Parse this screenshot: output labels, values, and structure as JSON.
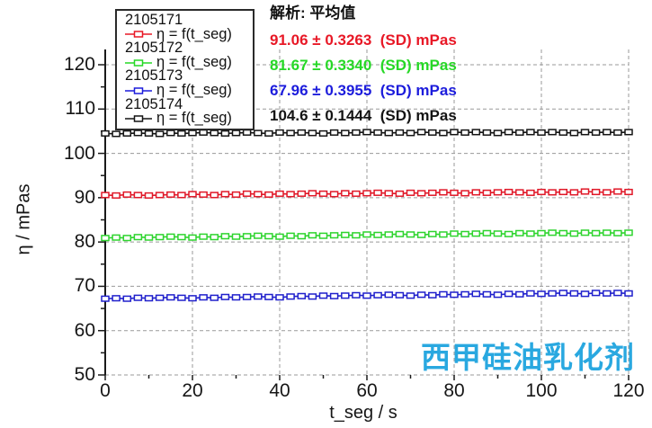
{
  "figure": {
    "watermark": "西甲硅油乳化剂",
    "watermark_color": "#29a8e0",
    "background": "#ffffff",
    "grid_color": "#9a9a9a",
    "axis_color": "#1a1a1a"
  },
  "analysis": {
    "title": "解析: 平均值",
    "results": [
      {
        "text": "91.06 ± 0.3263  (SD) mPas",
        "color": "#e81826"
      },
      {
        "text": "81.67 ± 0.3340  (SD) mPas",
        "color": "#26d826"
      },
      {
        "text": "67.96 ± 0.3955  (SD) mPas",
        "color": "#1c1cdc"
      },
      {
        "text": "104.6 ± 0.1444  (SD) mPas",
        "color": "#141414"
      }
    ]
  },
  "legend": {
    "items": [
      {
        "id": "2105171",
        "formula": "η = f(t_seg)",
        "color": "#e81826"
      },
      {
        "id": "2105172",
        "formula": "η = f(t_seg)",
        "color": "#26d826"
      },
      {
        "id": "2105173",
        "formula": "η = f(t_seg)",
        "color": "#1c1cdc"
      },
      {
        "id": "2105174",
        "formula": "η = f(t_seg)",
        "color": "#141414"
      }
    ]
  },
  "chart_data": {
    "type": "line",
    "title": "",
    "xlabel": "t_seg / s",
    "ylabel": "η / mPas",
    "xlim": [
      0,
      120
    ],
    "ylim": [
      50,
      120
    ],
    "x_ticks": [
      0,
      20,
      40,
      60,
      80,
      100,
      120
    ],
    "x_minor_ticks": [
      10,
      30,
      50,
      70,
      90,
      110
    ],
    "y_ticks": [
      50,
      60,
      70,
      80,
      90,
      100,
      110,
      120
    ],
    "y_minor_ticks": [
      55,
      65,
      75,
      85,
      95,
      105,
      115
    ],
    "grid": "dashed",
    "legend_position": "top-left",
    "marker": "open-square",
    "x": [
      0,
      2.5,
      5,
      7.5,
      10,
      12.5,
      15,
      17.5,
      20,
      22.5,
      25,
      27.5,
      30,
      32.5,
      35,
      37.5,
      40,
      42.5,
      45,
      47.5,
      50,
      52.5,
      55,
      57.5,
      60,
      62.5,
      65,
      67.5,
      70,
      72.5,
      75,
      77.5,
      80,
      82.5,
      85,
      87.5,
      90,
      92.5,
      95,
      97.5,
      100,
      102.5,
      105,
      107.5,
      110,
      112.5,
      115,
      117.5,
      120
    ],
    "series": [
      {
        "name": "2105171",
        "color": "#e01828",
        "mean": 91.06,
        "sd": 0.3263,
        "values": [
          90.6,
          90.5,
          90.7,
          90.6,
          90.5,
          90.6,
          90.7,
          90.6,
          90.8,
          90.7,
          90.6,
          90.8,
          90.7,
          90.9,
          90.8,
          90.7,
          90.9,
          90.8,
          90.9,
          91.0,
          90.9,
          90.8,
          91.0,
          90.9,
          91.0,
          91.1,
          91.0,
          90.9,
          91.1,
          91.0,
          91.1,
          91.2,
          91.1,
          91.0,
          91.2,
          91.1,
          91.2,
          91.3,
          91.2,
          91.1,
          91.3,
          91.2,
          91.3,
          91.2,
          91.4,
          91.3,
          91.2,
          91.4,
          91.3
        ]
      },
      {
        "name": "2105172",
        "color": "#2ed42e",
        "mean": 81.67,
        "sd": 0.334,
        "values": [
          80.9,
          81.0,
          80.9,
          81.1,
          81.0,
          81.1,
          81.2,
          81.1,
          81.0,
          81.2,
          81.1,
          81.3,
          81.2,
          81.3,
          81.4,
          81.3,
          81.2,
          81.4,
          81.3,
          81.5,
          81.4,
          81.5,
          81.6,
          81.5,
          81.7,
          81.6,
          81.7,
          81.8,
          81.7,
          81.6,
          81.8,
          81.7,
          81.9,
          81.8,
          81.9,
          82.0,
          81.9,
          81.8,
          82.0,
          81.9,
          82.0,
          82.1,
          82.0,
          81.9,
          82.1,
          82.0,
          82.1,
          82.0,
          82.1
        ]
      },
      {
        "name": "2105173",
        "color": "#2020cc",
        "mean": 67.96,
        "sd": 0.3955,
        "values": [
          67.2,
          67.3,
          67.2,
          67.4,
          67.3,
          67.4,
          67.5,
          67.4,
          67.3,
          67.5,
          67.4,
          67.6,
          67.5,
          67.6,
          67.7,
          67.6,
          67.5,
          67.7,
          67.8,
          67.7,
          67.9,
          67.8,
          67.9,
          68.0,
          67.9,
          68.0,
          68.1,
          68.0,
          67.9,
          68.1,
          68.0,
          68.2,
          68.1,
          68.2,
          68.3,
          68.2,
          68.1,
          68.3,
          68.2,
          68.4,
          68.3,
          68.4,
          68.5,
          68.4,
          68.3,
          68.5,
          68.4,
          68.5,
          68.4
        ]
      },
      {
        "name": "2105174",
        "color": "#141414",
        "mean": 104.6,
        "sd": 0.1444,
        "values": [
          104.5,
          104.4,
          104.5,
          104.6,
          104.5,
          104.4,
          104.6,
          104.5,
          104.6,
          104.7,
          104.6,
          104.5,
          104.6,
          104.7,
          104.6,
          104.5,
          104.7,
          104.6,
          104.7,
          104.6,
          104.5,
          104.7,
          104.6,
          104.7,
          104.8,
          104.7,
          104.6,
          104.7,
          104.6,
          104.8,
          104.7,
          104.6,
          104.8,
          104.7,
          104.8,
          104.7,
          104.6,
          104.8,
          104.7,
          104.8,
          104.7,
          104.8,
          104.7,
          104.6,
          104.8,
          104.7,
          104.8,
          104.7,
          104.8
        ]
      }
    ]
  }
}
